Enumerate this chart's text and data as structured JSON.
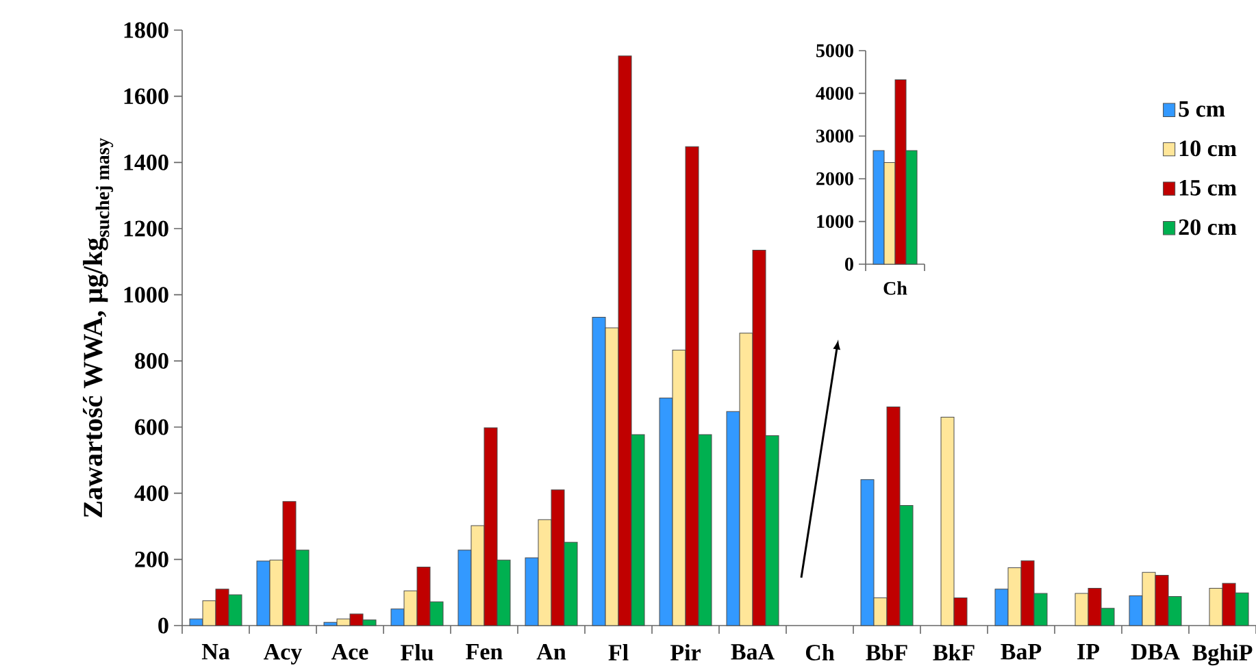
{
  "chart_data": [
    {
      "type": "bar",
      "ylabel": "\\text{Zawartość WWA, µg/kg}_{\\text{suchej masy}}",
      "categories": [
        "Na",
        "Acy",
        "Ace",
        "Flu",
        "Fen",
        "An",
        "Fl",
        "Pir",
        "BaA",
        "Ch",
        "BbF",
        "BkF",
        "BaP",
        "IP",
        "DBA",
        "BghiP"
      ],
      "series": [
        {
          "name": "5 cm",
          "color": "#3399ff",
          "values": [
            20,
            195,
            10,
            50,
            228,
            205,
            932,
            688,
            647,
            null,
            441,
            null,
            110,
            null,
            90,
            null
          ]
        },
        {
          "name": "10 cm",
          "color": "#ffe699",
          "values": [
            75,
            198,
            20,
            105,
            302,
            320,
            900,
            833,
            884,
            null,
            84,
            630,
            175,
            97,
            161,
            113
          ]
        },
        {
          "name": "15 cm",
          "color": "#c00000",
          "values": [
            110,
            375,
            35,
            177,
            598,
            410,
            1722,
            1448,
            1135,
            null,
            661,
            84,
            196,
            113,
            152,
            128
          ]
        },
        {
          "name": "20 cm",
          "color": "#00b050",
          "values": [
            93,
            228,
            17,
            72,
            198,
            252,
            577,
            577,
            574,
            null,
            363,
            null,
            97,
            52,
            88,
            99
          ]
        }
      ],
      "ylim": [
        0,
        1800
      ],
      "yticks": [
        0,
        200,
        400,
        600,
        800,
        1000,
        1200,
        1400,
        1600,
        1800
      ],
      "legend": "top right"
    },
    {
      "type": "bar",
      "categories": [
        "Ch"
      ],
      "series": [
        {
          "color": "#3399ff",
          "values": [
            2660
          ]
        },
        {
          "color": "#ffe699",
          "values": [
            2380
          ]
        },
        {
          "color": "#c00000",
          "values": [
            4320
          ]
        },
        {
          "color": "#00b050",
          "values": [
            2660
          ]
        }
      ],
      "ylim": [
        0,
        5000
      ],
      "yticks": [
        0,
        1000,
        2000,
        3000,
        4000,
        5000
      ]
    }
  ]
}
